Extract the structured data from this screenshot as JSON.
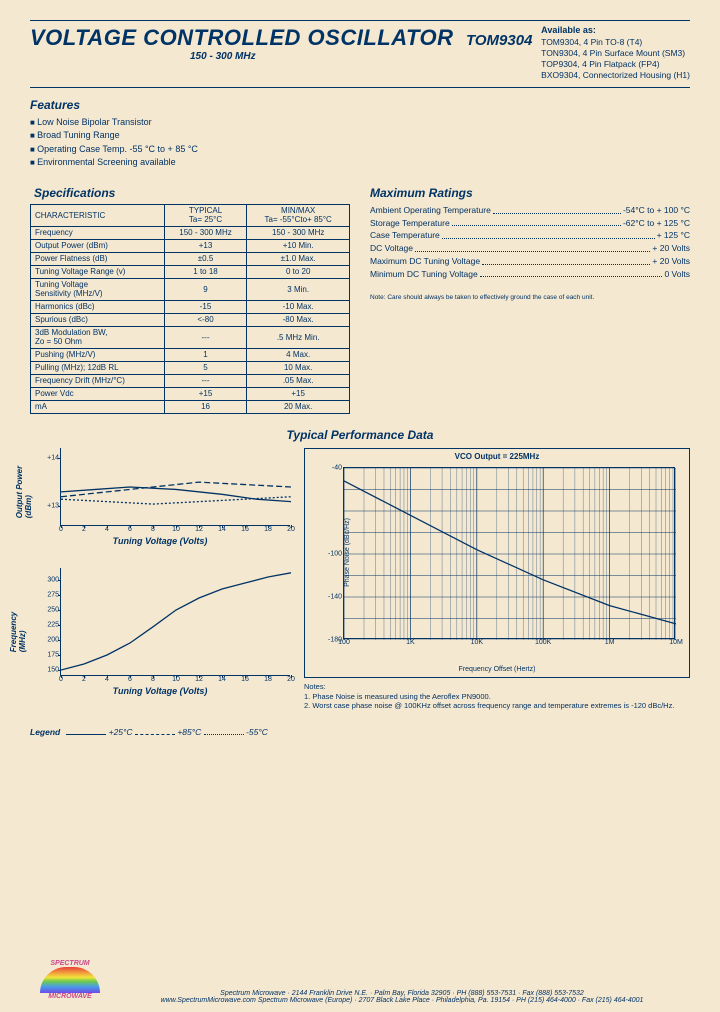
{
  "header": {
    "title": "VOLTAGE CONTROLLED OSCILLATOR",
    "model": "TOM9304",
    "range": "150 - 300 MHz",
    "availableTitle": "Available as:",
    "availableList": [
      "TOM9304, 4 Pin TO-8 (T4)",
      "TON9304, 4 Pin Surface Mount (SM3)",
      "TOP9304, 4 Pin Flatpack (FP4)",
      "BXO9304, Connectorized Housing (H1)"
    ]
  },
  "featuresTitle": "Features",
  "features": [
    "Low Noise Bipolar Transistor",
    "Broad Tuning Range",
    "Operating Case Temp. -55 °C to + 85 °C",
    "Environmental Screening available"
  ],
  "specTitle": "Specifications",
  "specTable": {
    "headCol": "CHARACTERISTIC",
    "headTyp": "TYPICAL\nTa= 25°C",
    "headMM": "MIN/MAX\nTa= -55°Cto+ 85°C",
    "rows": [
      [
        "Frequency",
        "150 - 300 MHz",
        "150 - 300 MHz"
      ],
      [
        "Output Power (dBm)",
        "+13",
        "+10 Min."
      ],
      [
        "Power Flatness (dB)",
        "±0.5",
        "±1.0 Max."
      ],
      [
        "Tuning Voltage Range (v)",
        "1 to 18",
        "0 to 20"
      ],
      [
        "Tuning Voltage\nSensitivity (MHz/V)",
        "9",
        "3 Min."
      ],
      [
        "Harmonics (dBc)",
        "-15",
        "-10 Max."
      ],
      [
        "Spurious (dBc)",
        "<-80",
        "-80 Max."
      ],
      [
        "3dB Modulation BW,\nZo = 50 Ohm",
        "---",
        ".5 MHz Min."
      ],
      [
        "Pushing (MHz/V)",
        "1",
        "4 Max."
      ],
      [
        "Pulling (MHz); 12dB RL",
        "5",
        "10 Max."
      ],
      [
        "Frequency Drift (MHz/°C)",
        "---",
        ".05 Max."
      ],
      [
        "Power            Vdc",
        "+15",
        "+15"
      ],
      [
        "                      mA",
        "16",
        "20 Max."
      ]
    ]
  },
  "ratingsTitle": "Maximum Ratings",
  "ratings": [
    [
      "Ambient Operating Temperature",
      "-54°C to + 100 °C"
    ],
    [
      "Storage Temperature",
      "-62°C to + 125 °C"
    ],
    [
      "Case Temperature",
      "+ 125 °C"
    ],
    [
      "DC Voltage",
      "+ 20 Volts"
    ],
    [
      "Maximum DC Tuning Voltage",
      "+ 20 Volts"
    ],
    [
      "Minimum DC Tuning Voltage",
      "0 Volts"
    ]
  ],
  "ratingsNote": "Note: Care should always be taken to effectively ground the case of each unit.",
  "perfTitle": "Typical Performance Data",
  "chart1": {
    "ylabel": "Output Power\n(dBm)",
    "xlabel": "Tuning Voltage (Volts)",
    "xlim": [
      0,
      20
    ],
    "ylim": [
      12.6,
      14.2
    ],
    "xticks": [
      0,
      2,
      4,
      6,
      8,
      10,
      12,
      14,
      16,
      18,
      20
    ],
    "yticks": [
      {
        "v": 13,
        "l": "+13"
      },
      {
        "v": 14,
        "l": "+14"
      }
    ],
    "series": [
      {
        "style": "solid",
        "pts": [
          [
            0,
            13.3
          ],
          [
            3,
            13.35
          ],
          [
            6,
            13.4
          ],
          [
            10,
            13.35
          ],
          [
            14,
            13.25
          ],
          [
            17,
            13.15
          ],
          [
            20,
            13.1
          ]
        ]
      },
      {
        "style": "long",
        "pts": [
          [
            0,
            13.2
          ],
          [
            4,
            13.3
          ],
          [
            8,
            13.4
          ],
          [
            12,
            13.5
          ],
          [
            16,
            13.45
          ],
          [
            20,
            13.4
          ]
        ]
      },
      {
        "style": "short",
        "pts": [
          [
            0,
            13.15
          ],
          [
            4,
            13.1
          ],
          [
            8,
            13.05
          ],
          [
            12,
            13.1
          ],
          [
            16,
            13.15
          ],
          [
            20,
            13.2
          ]
        ]
      }
    ]
  },
  "chart2": {
    "ylabel": "Frequency\n(MHz)",
    "xlabel": "Tuning Voltage (Volts)",
    "xlim": [
      0,
      20
    ],
    "ylim": [
      140,
      320
    ],
    "xticks": [
      0,
      2,
      4,
      6,
      8,
      10,
      12,
      14,
      16,
      18,
      20
    ],
    "yticks": [
      {
        "v": 150,
        "l": "150"
      },
      {
        "v": 175,
        "l": "175"
      },
      {
        "v": 200,
        "l": "200"
      },
      {
        "v": 225,
        "l": "225"
      },
      {
        "v": 250,
        "l": "250"
      },
      {
        "v": 275,
        "l": "275"
      },
      {
        "v": 300,
        "l": "300"
      }
    ],
    "series": [
      {
        "style": "solid",
        "pts": [
          [
            0,
            150
          ],
          [
            2,
            160
          ],
          [
            4,
            175
          ],
          [
            6,
            195
          ],
          [
            8,
            222
          ],
          [
            10,
            250
          ],
          [
            12,
            270
          ],
          [
            14,
            285
          ],
          [
            16,
            295
          ],
          [
            18,
            305
          ],
          [
            20,
            312
          ]
        ]
      }
    ]
  },
  "chart3": {
    "title": "VCO Output = 225MHz",
    "ylabel": "Phase Noise (dBc/Hz)",
    "xlabel": "Frequency Offset (Hertz)",
    "yticks": [
      "-40",
      "",
      "",
      "",
      "-100",
      "",
      "-140",
      "",
      "-180"
    ],
    "xticks": [
      "100",
      "1K",
      "10K",
      "100K",
      "1M",
      "10M"
    ],
    "pts": [
      [
        0,
        12
      ],
      [
        20,
        44
      ],
      [
        40,
        76
      ],
      [
        60,
        104
      ],
      [
        80,
        128
      ],
      [
        100,
        145
      ]
    ]
  },
  "notes": {
    "head": "Notes:",
    "lines": [
      "1. Phase Noise is measured using the Aeroflex PN9000.",
      "2. Worst case phase noise @ 100KHz offset across frequency range and temperature extremes is -120 dBc/Hz."
    ]
  },
  "legend": {
    "label": "Legend",
    "items": [
      {
        "text": "+25°C",
        "dash": "solid"
      },
      {
        "text": "+85°C",
        "dash": "long"
      },
      {
        "text": "-55°C",
        "dash": "short"
      }
    ]
  },
  "footer": {
    "logoTop": "SPECTRUM",
    "logoBot": "MICROWAVE",
    "line1": "Spectrum Microwave · 2144 Franklin Drive N.E. · Palm Bay, Florida 32905 · PH (888) 553-7531 · Fax (888) 553-7532",
    "line2": "www.SpectrumMicrowave.com  Spectrum Microwave (Europe) · 2707 Black Lake Place · Philadelphia, Pa. 19154 · PH (215) 464-4000 · Fax (215) 464-4001"
  },
  "colors": {
    "ink": "#003366",
    "bg": "#f5e8d0"
  }
}
